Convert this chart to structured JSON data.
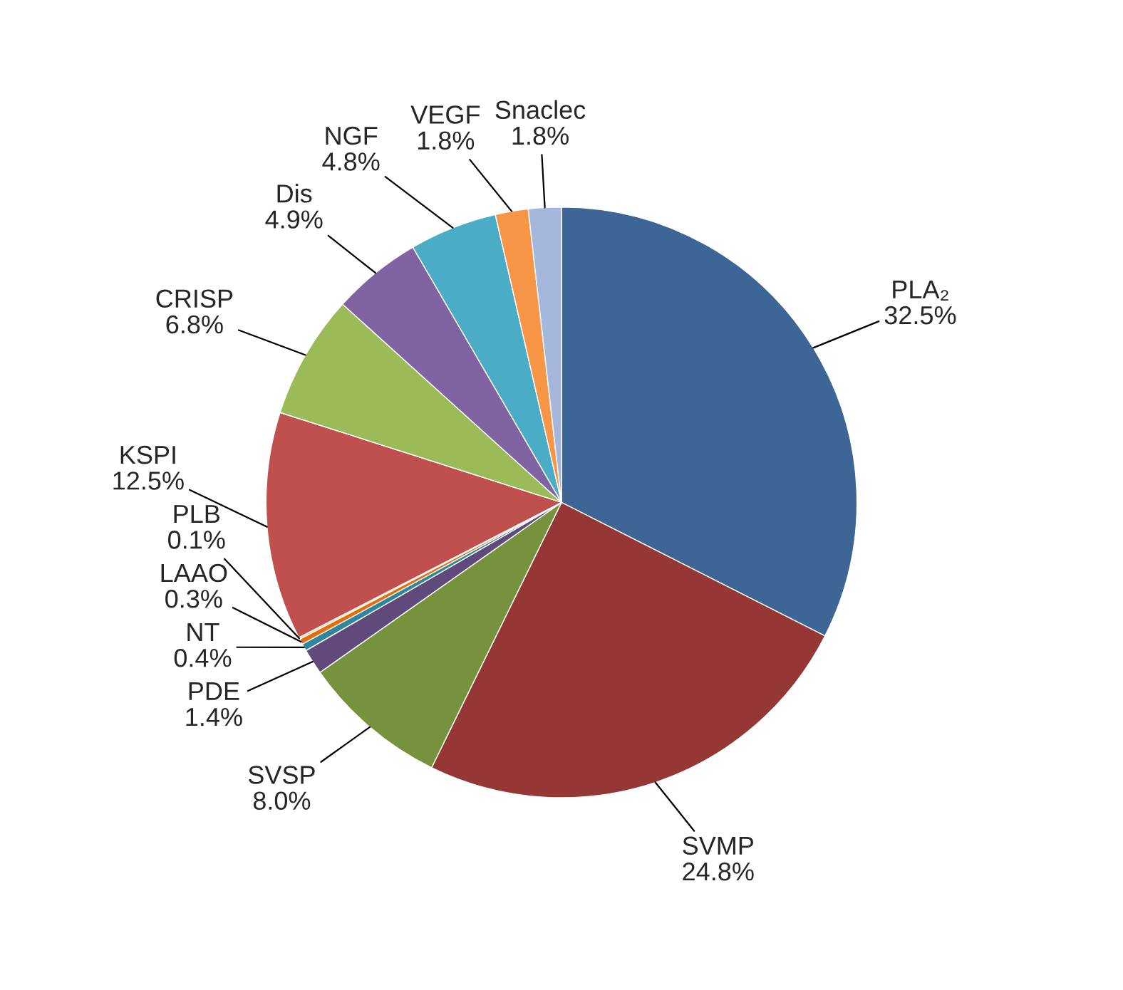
{
  "chart_data": {
    "type": "pie",
    "categories": [
      "PLA₂",
      "SVMP",
      "SVSP",
      "PDE",
      "NT",
      "LAAO",
      "PLB",
      "KSPI",
      "CRISP",
      "Dis",
      "NGF",
      "VEGF",
      "Snaclec"
    ],
    "values": [
      32.5,
      24.8,
      8.0,
      1.4,
      0.4,
      0.3,
      0.1,
      12.5,
      6.8,
      4.9,
      4.8,
      1.8,
      1.8
    ],
    "value_labels": [
      "32.5%",
      "24.8%",
      "8.0%",
      "1.4%",
      "0.4%",
      "0.3%",
      "0.1%",
      "12.5%",
      "6.8%",
      "4.9%",
      "4.8%",
      "1.8%",
      "1.8%"
    ],
    "colors": [
      "#3d6596",
      "#953735",
      "#76923c",
      "#5f4a7b",
      "#31859c",
      "#e46c0a",
      "#c3d69b",
      "#c0504d",
      "#9bbb59",
      "#8064a2",
      "#4bacc6",
      "#f79646",
      "#a5b8db"
    ]
  }
}
